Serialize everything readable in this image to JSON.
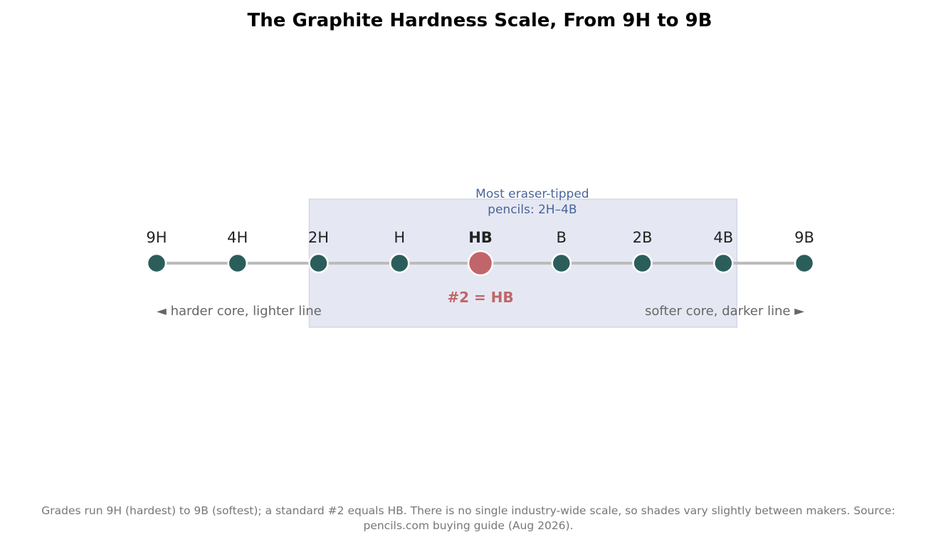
{
  "title": "The Graphite Hardness Scale, From 9H to 9B",
  "grades": [
    "9H",
    "4H",
    "2H",
    "H",
    "HB",
    "B",
    "2B",
    "4B",
    "9B"
  ],
  "highlight": {
    "grade": "HB",
    "label": "#2 = HB"
  },
  "range_box": {
    "label_line1": "Most eraser-tipped",
    "label_line2": "pencils: 2H–4B",
    "from_grade": "2H",
    "to_grade": "4B"
  },
  "left_note": "◄ harder core, lighter line",
  "right_note": "softer core, darker line ►",
  "footnote_line1": "Grades run 9H (hardest) to 9B (softest); a standard #2 equals HB. There is no single industry-wide scale, so shades vary slightly between makers. Source:",
  "footnote_line2": "pencils.com buying guide (Aug 2026).",
  "colors": {
    "node": "#2b5e5b",
    "highlight": "#c0666a",
    "line": "#bbbbbb",
    "range_fill": "#e5e8f2",
    "range_stroke": "#d2d7e9",
    "range_text": "#4a6499",
    "note_text": "#666666",
    "footnote_text": "#777777",
    "label_text": "#222222"
  }
}
